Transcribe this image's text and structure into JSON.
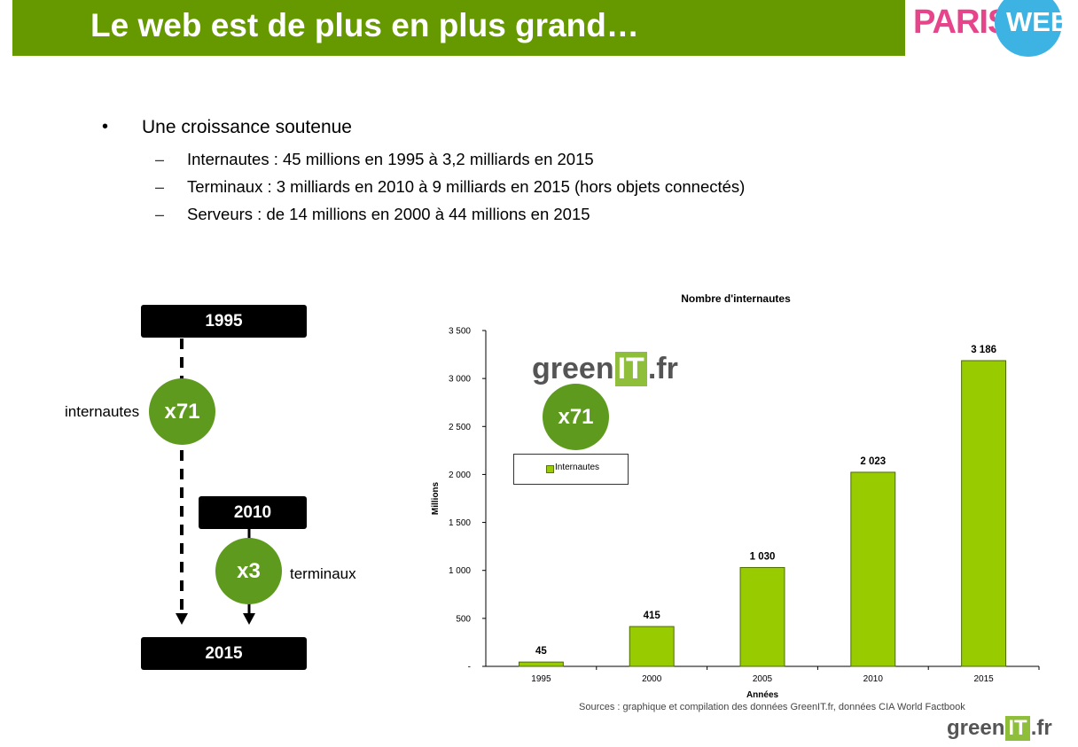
{
  "header": {
    "title": "Le web est de plus en plus grand…",
    "logo_paris": "PARIS",
    "logo_web": "WEB",
    "colors": {
      "bar": "#669900",
      "paris": "#e6458c",
      "web_circle": "#3db3e3"
    }
  },
  "bullets": {
    "bullet_glyph": "•",
    "main": "Une croissance soutenue",
    "dash_glyph": "–",
    "sub": [
      "Internautes : 45 millions en 1995 à 3,2 milliards en 2015",
      "Terminaux : 3 milliards en 2010 à 9 milliards en 2015 (hors objets connectés)",
      "Serveurs : de 14 millions en 2000 à 44 millions en 2015"
    ]
  },
  "timeline": {
    "year_start": "1995",
    "year_mid": "2010",
    "year_end": "2015",
    "mult_internautes": "x71",
    "label_internautes": "internautes",
    "mult_terminaux": "x3",
    "label_terminaux": "terminaux",
    "circle_color": "#5e9a1e"
  },
  "chart_data": {
    "type": "bar",
    "title": "Nombre d'internautes",
    "xlabel": "Années",
    "ylabel": "Millions",
    "categories": [
      "1995",
      "2000",
      "2005",
      "2010",
      "2015"
    ],
    "series": [
      {
        "name": "Internautes",
        "values": [
          45,
          415,
          1030,
          2023,
          3186
        ],
        "labels": [
          "45",
          "415",
          "1 030",
          "2 023",
          "3 186"
        ]
      }
    ],
    "ylim": [
      0,
      3500
    ],
    "yticks": [
      0,
      500,
      1000,
      1500,
      2000,
      2500,
      3000,
      3500
    ],
    "ytick_labels": [
      "-",
      "500",
      "1 000",
      "1 500",
      "2 000",
      "2 500",
      "3 000",
      "3 500"
    ],
    "grid": false,
    "legend_position": "upper-left",
    "bar_color": "#99cc00",
    "annotation": "x71",
    "annotation_color": "#5e9a1e"
  },
  "chart_footer": {
    "source": "Sources : graphique et compilation des données GreenIT.fr, données  CIA World Factbook"
  },
  "greenit": {
    "green": "green",
    "it": "IT",
    "fr": ".fr"
  }
}
